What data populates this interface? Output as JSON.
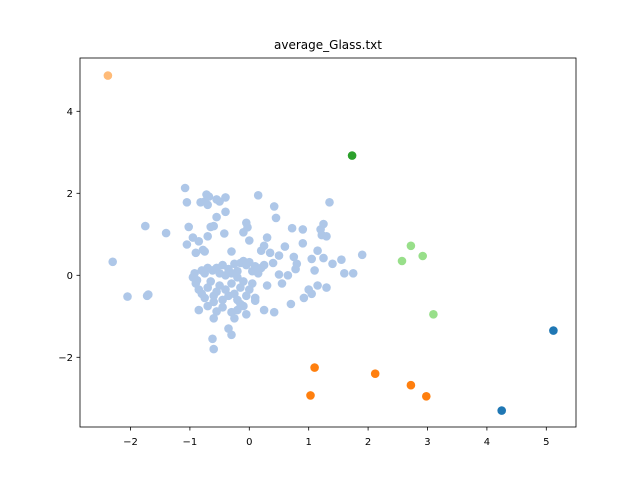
{
  "chart_data": {
    "type": "scatter",
    "title": "average_Glass.txt",
    "xlabel": "",
    "ylabel": "",
    "xlim": [
      -2.85,
      5.5
    ],
    "ylim": [
      -3.7,
      5.3
    ],
    "xticks": [
      -2,
      -1,
      0,
      1,
      2,
      3,
      4,
      5
    ],
    "yticks": [
      -2,
      0,
      2,
      4
    ],
    "xtick_labels": [
      "−2",
      "−1",
      "0",
      "1",
      "2",
      "3",
      "4",
      "5"
    ],
    "ytick_labels": [
      "−2",
      "0",
      "2",
      "4"
    ],
    "grid": false,
    "legend": "none",
    "series": [
      {
        "color": "#1f77b4",
        "points": [
          [
            5.12,
            -1.35
          ],
          [
            4.25,
            -3.3
          ]
        ]
      },
      {
        "color": "#aec7e8",
        "points": [
          [
            -2.3,
            0.33
          ],
          [
            -2.05,
            -0.52
          ],
          [
            -1.75,
            1.2
          ],
          [
            -1.7,
            -0.47
          ],
          [
            -1.72,
            -0.5
          ],
          [
            -1.4,
            1.03
          ],
          [
            -1.08,
            2.13
          ],
          [
            -1.05,
            1.78
          ],
          [
            -1.05,
            0.75
          ],
          [
            -1.02,
            1.18
          ],
          [
            -0.95,
            0.92
          ],
          [
            -0.9,
            0.55
          ],
          [
            -0.85,
            0.83
          ],
          [
            -0.82,
            1.78
          ],
          [
            -0.75,
            1.8
          ],
          [
            -0.72,
            1.97
          ],
          [
            -0.7,
            1.72
          ],
          [
            -0.68,
            1.92
          ],
          [
            -0.78,
            0.62
          ],
          [
            -0.75,
            0.58
          ],
          [
            -0.7,
            0.95
          ],
          [
            -0.65,
            1.18
          ],
          [
            -0.6,
            1.2
          ],
          [
            -0.55,
            1.42
          ],
          [
            -0.55,
            1.85
          ],
          [
            -0.5,
            1.8
          ],
          [
            -0.4,
            1.9
          ],
          [
            -0.4,
            1.55
          ],
          [
            -0.42,
            1.02
          ],
          [
            -0.3,
            0.58
          ],
          [
            -0.25,
            0.28
          ],
          [
            -0.1,
            1.05
          ],
          [
            -0.05,
            1.28
          ],
          [
            -0.03,
            1.17
          ],
          [
            0.0,
            0.85
          ],
          [
            0.15,
            1.95
          ],
          [
            0.3,
            0.92
          ],
          [
            0.25,
            0.72
          ],
          [
            0.2,
            0.6
          ],
          [
            0.35,
            0.55
          ],
          [
            0.42,
            1.68
          ],
          [
            0.45,
            1.4
          ],
          [
            0.5,
            0.48
          ],
          [
            0.25,
            0.25
          ],
          [
            0.4,
            0.3
          ],
          [
            0.6,
            0.7
          ],
          [
            0.75,
            0.45
          ],
          [
            0.72,
            1.15
          ],
          [
            0.8,
            0.28
          ],
          [
            0.9,
            1.12
          ],
          [
            0.9,
            0.78
          ],
          [
            1.05,
            0.4
          ],
          [
            1.15,
            0.6
          ],
          [
            1.2,
            1.12
          ],
          [
            1.22,
            0.98
          ],
          [
            1.25,
            1.25
          ],
          [
            1.25,
            0.42
          ],
          [
            1.3,
            0.95
          ],
          [
            1.35,
            1.78
          ],
          [
            1.1,
            0.12
          ],
          [
            1.55,
            0.38
          ],
          [
            1.6,
            0.05
          ],
          [
            1.75,
            0.05
          ],
          [
            1.9,
            0.5
          ],
          [
            -0.8,
            0.12
          ],
          [
            -0.75,
            0.05
          ],
          [
            -0.7,
            0.18
          ],
          [
            -0.62,
            0.12
          ],
          [
            -0.55,
            0.18
          ],
          [
            -0.5,
            0.05
          ],
          [
            -0.45,
            0.25
          ],
          [
            -0.35,
            0.15
          ],
          [
            -0.3,
            0.05
          ],
          [
            -0.2,
            0.1
          ],
          [
            -0.15,
            0.3
          ],
          [
            -0.1,
            0.35
          ],
          [
            -0.05,
            0.25
          ],
          [
            0.0,
            0.32
          ],
          [
            0.05,
            0.1
          ],
          [
            0.1,
            0.22
          ],
          [
            0.15,
            0.05
          ],
          [
            0.2,
            0.18
          ],
          [
            -0.9,
            -0.2
          ],
          [
            -0.85,
            -0.35
          ],
          [
            -0.8,
            -0.45
          ],
          [
            -0.75,
            -0.55
          ],
          [
            -0.7,
            -0.3
          ],
          [
            -0.65,
            -0.15
          ],
          [
            -0.6,
            -0.5
          ],
          [
            -0.55,
            -0.4
          ],
          [
            -0.5,
            -0.25
          ],
          [
            -0.45,
            -0.6
          ],
          [
            -0.4,
            -0.35
          ],
          [
            -0.35,
            -0.5
          ],
          [
            -0.3,
            -0.2
          ],
          [
            -0.25,
            -0.45
          ],
          [
            -0.2,
            -0.6
          ],
          [
            -0.15,
            -0.3
          ],
          [
            -0.1,
            -0.15
          ],
          [
            -0.05,
            -0.5
          ],
          [
            0.0,
            -0.35
          ],
          [
            0.05,
            -0.2
          ],
          [
            0.1,
            -0.55
          ],
          [
            -0.85,
            -0.85
          ],
          [
            -0.7,
            -0.75
          ],
          [
            -0.55,
            -0.88
          ],
          [
            -0.45,
            -0.78
          ],
          [
            -0.3,
            -0.9
          ],
          [
            -0.25,
            -1.05
          ],
          [
            -0.2,
            -0.85
          ],
          [
            -0.1,
            -0.75
          ],
          [
            -0.05,
            -0.95
          ],
          [
            0.1,
            -0.62
          ],
          [
            -0.6,
            -1.05
          ],
          [
            -0.35,
            -1.3
          ],
          [
            -0.3,
            -1.45
          ],
          [
            -0.62,
            -1.55
          ],
          [
            -0.6,
            -1.8
          ],
          [
            -0.95,
            -0.05
          ],
          [
            -0.92,
            0.05
          ],
          [
            -0.88,
            -0.12
          ],
          [
            0.25,
            -0.85
          ],
          [
            0.3,
            -0.25
          ],
          [
            0.42,
            -0.9
          ],
          [
            0.55,
            -0.2
          ],
          [
            0.7,
            -0.7
          ],
          [
            0.78,
            0.15
          ],
          [
            0.92,
            -0.55
          ],
          [
            1.0,
            -0.35
          ],
          [
            1.05,
            -0.45
          ],
          [
            1.15,
            -0.25
          ],
          [
            1.3,
            -0.3
          ],
          [
            1.4,
            0.28
          ],
          [
            0.5,
            0.02
          ],
          [
            0.65,
            0.0
          ],
          [
            -0.2,
            -0.05
          ],
          [
            -0.4,
            0.0
          ],
          [
            -0.6,
            -0.65
          ],
          [
            -0.15,
            -0.7
          ]
        ]
      },
      {
        "color": "#ff7f0e",
        "points": [
          [
            1.1,
            -2.25
          ],
          [
            1.03,
            -2.93
          ],
          [
            2.12,
            -2.4
          ],
          [
            2.72,
            -2.68
          ],
          [
            2.98,
            -2.95
          ]
        ]
      },
      {
        "color": "#ffbb78",
        "points": [
          [
            -2.38,
            4.87
          ]
        ]
      },
      {
        "color": "#2ca02c",
        "points": [
          [
            1.73,
            2.92
          ]
        ]
      },
      {
        "color": "#98df8a",
        "points": [
          [
            2.72,
            0.72
          ],
          [
            2.92,
            0.47
          ],
          [
            2.57,
            0.35
          ],
          [
            3.1,
            -0.95
          ]
        ]
      }
    ]
  }
}
